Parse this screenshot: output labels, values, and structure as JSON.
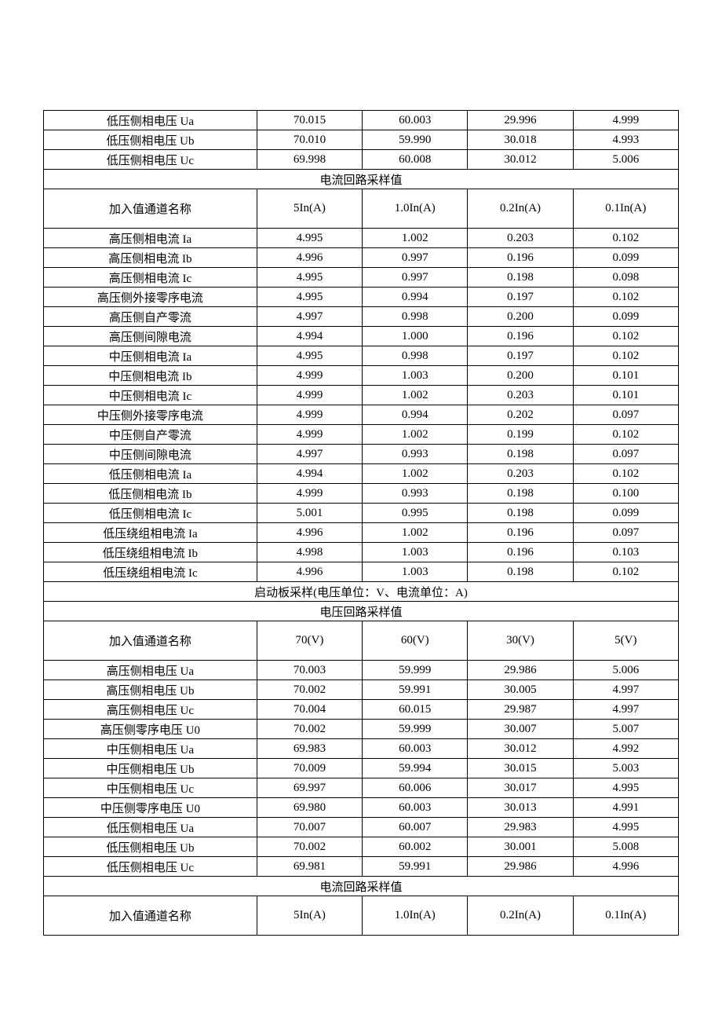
{
  "section1_rows": [
    [
      "低压侧相电压 Ua",
      "70.015",
      "60.003",
      "29.996",
      "4.999"
    ],
    [
      "低压侧相电压 Ub",
      "70.010",
      "59.990",
      "30.018",
      "4.993"
    ],
    [
      "低压侧相电压 Uc",
      "69.998",
      "60.008",
      "30.012",
      "5.006"
    ]
  ],
  "current_header_1": "电流回路采样值",
  "channel_label": "加入值通道名称",
  "current_cols": [
    "5In(A)",
    "1.0In(A)",
    "0.2In(A)",
    "0.1In(A)"
  ],
  "section2_rows": [
    [
      "高压侧相电流 Ia",
      "4.995",
      "1.002",
      "0.203",
      "0.102"
    ],
    [
      "高压侧相电流 Ib",
      "4.996",
      "0.997",
      "0.196",
      "0.099"
    ],
    [
      "高压侧相电流 Ic",
      "4.995",
      "0.997",
      "0.198",
      "0.098"
    ],
    [
      "高压侧外接零序电流",
      "4.995",
      "0.994",
      "0.197",
      "0.102"
    ],
    [
      "高压侧自产零流",
      "4.997",
      "0.998",
      "0.200",
      "0.099"
    ],
    [
      "高压侧间隙电流",
      "4.994",
      "1.000",
      "0.196",
      "0.102"
    ],
    [
      "中压侧相电流 Ia",
      "4.995",
      "0.998",
      "0.197",
      "0.102"
    ],
    [
      "中压侧相电流 Ib",
      "4.999",
      "1.003",
      "0.200",
      "0.101"
    ],
    [
      "中压侧相电流 Ic",
      "4.999",
      "1.002",
      "0.203",
      "0.101"
    ],
    [
      "中压侧外接零序电流",
      "4.999",
      "0.994",
      "0.202",
      "0.097"
    ],
    [
      "中压侧自产零流",
      "4.999",
      "1.002",
      "0.199",
      "0.102"
    ],
    [
      "中压侧间隙电流",
      "4.997",
      "0.993",
      "0.198",
      "0.097"
    ],
    [
      "低压侧相电流 Ia",
      "4.994",
      "1.002",
      "0.203",
      "0.102"
    ],
    [
      "低压侧相电流 Ib",
      "4.999",
      "0.993",
      "0.198",
      "0.100"
    ],
    [
      "低压侧相电流 Ic",
      "5.001",
      "0.995",
      "0.198",
      "0.099"
    ],
    [
      "低压绕组相电流 Ia",
      "4.996",
      "1.002",
      "0.196",
      "0.097"
    ],
    [
      "低压绕组相电流 Ib",
      "4.998",
      "1.003",
      "0.196",
      "0.103"
    ],
    [
      "低压绕组相电流 Ic",
      "4.996",
      "1.003",
      "0.198",
      "0.102"
    ]
  ],
  "startup_header": "启动板采样(电压单位：V、电流单位：A)",
  "voltage_header": "电压回路采样值",
  "voltage_cols": [
    "70(V)",
    "60(V)",
    "30(V)",
    "5(V)"
  ],
  "section3_rows": [
    [
      "高压侧相电压 Ua",
      "70.003",
      "59.999",
      "29.986",
      "5.006"
    ],
    [
      "高压侧相电压 Ub",
      "70.002",
      "59.991",
      "30.005",
      "4.997"
    ],
    [
      "高压侧相电压 Uc",
      "70.004",
      "60.015",
      "29.987",
      "4.997"
    ],
    [
      "高压侧零序电压 U0",
      "70.002",
      "59.999",
      "30.007",
      "5.007"
    ],
    [
      "中压侧相电压 Ua",
      "69.983",
      "60.003",
      "30.012",
      "4.992"
    ],
    [
      "中压侧相电压 Ub",
      "70.009",
      "59.994",
      "30.015",
      "5.003"
    ],
    [
      "中压侧相电压 Uc",
      "69.997",
      "60.006",
      "30.017",
      "4.995"
    ],
    [
      "中压侧零序电压 U0",
      "69.980",
      "60.003",
      "30.013",
      "4.991"
    ],
    [
      "低压侧相电压 Ua",
      "70.007",
      "60.007",
      "29.983",
      "4.995"
    ],
    [
      "低压侧相电压 Ub",
      "70.002",
      "60.002",
      "30.001",
      "5.008"
    ],
    [
      "低压侧相电压 Uc",
      "69.981",
      "59.991",
      "29.986",
      "4.996"
    ]
  ],
  "current_header_2": "电流回路采样值",
  "current_cols_2": [
    "5In(A)",
    "1.0In(A)",
    "0.2In(A)",
    "0.1In(A)"
  ]
}
